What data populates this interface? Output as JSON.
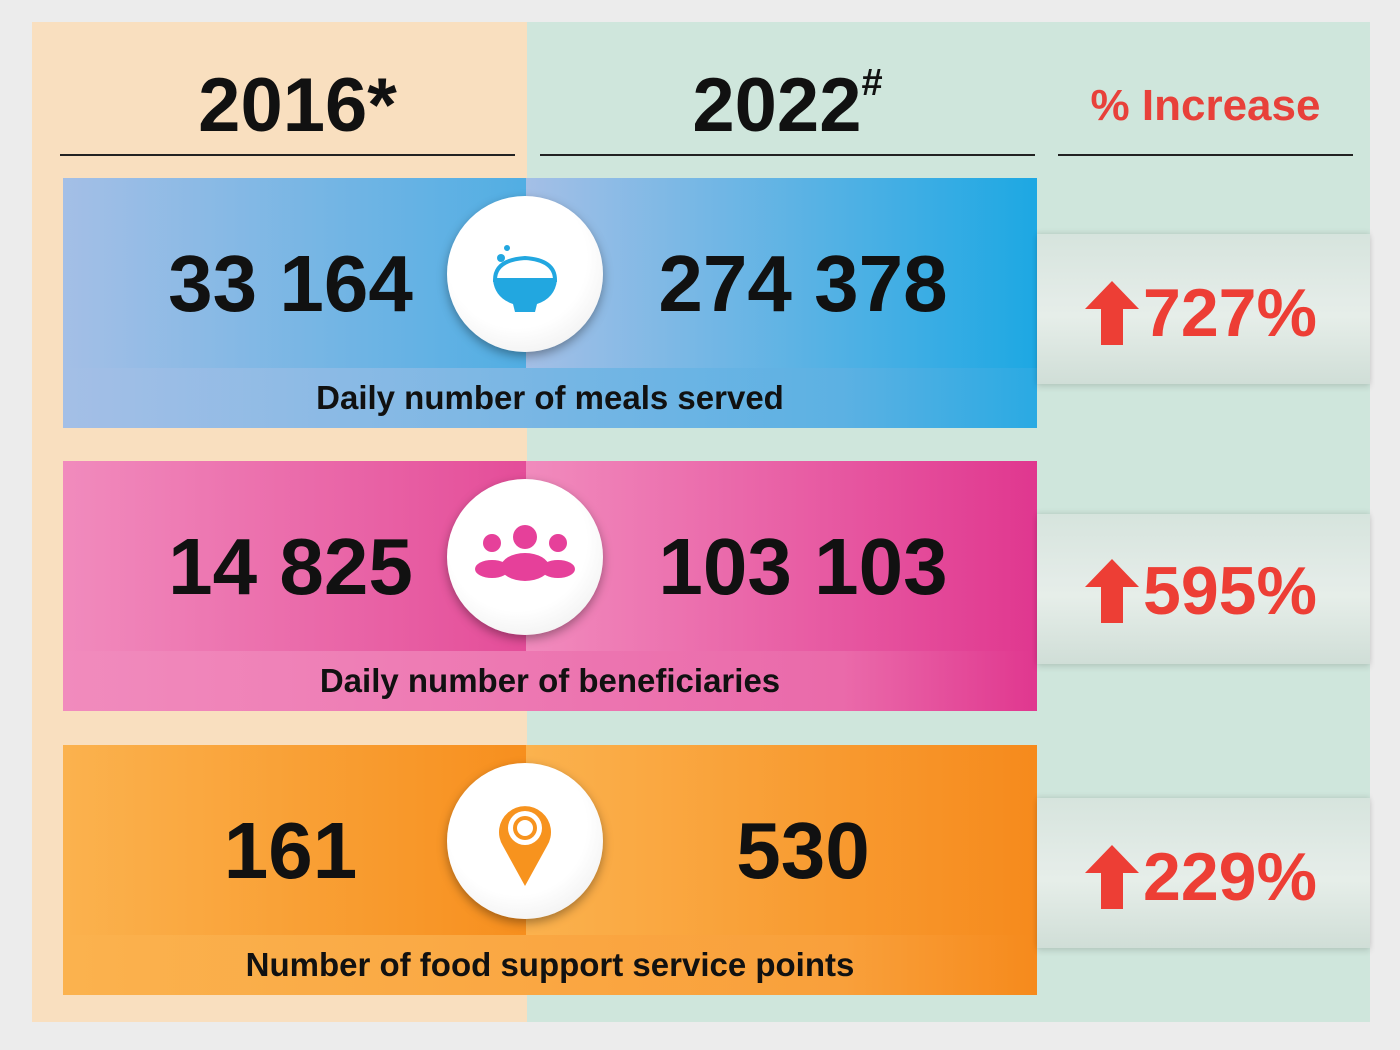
{
  "header": {
    "year_left": "2016",
    "year_left_mark": "*",
    "year_right": "2022",
    "year_right_mark": "#",
    "increase_label": "% Increase"
  },
  "rows": [
    {
      "id": "meals",
      "value_2016": "33 164",
      "value_2022": "274 378",
      "label": "Daily number of meals served",
      "increase": "727%",
      "icon": "rice-bowl-icon",
      "color": "#1da8e3"
    },
    {
      "id": "beneficiaries",
      "value_2016": "14 825",
      "value_2022": "103 103",
      "label": "Daily number of beneficiaries",
      "increase": "595%",
      "icon": "people-group-icon",
      "color": "#e0378f"
    },
    {
      "id": "service-points",
      "value_2016": "161",
      "value_2022": "530",
      "label": "Number of food support service points",
      "increase": "229%",
      "icon": "location-pin-icon",
      "color": "#f68a1c"
    }
  ],
  "colors": {
    "increase_red": "#ed3e35",
    "left_panel": "#f9dfbf",
    "right_panel": "#cfe6dc"
  }
}
